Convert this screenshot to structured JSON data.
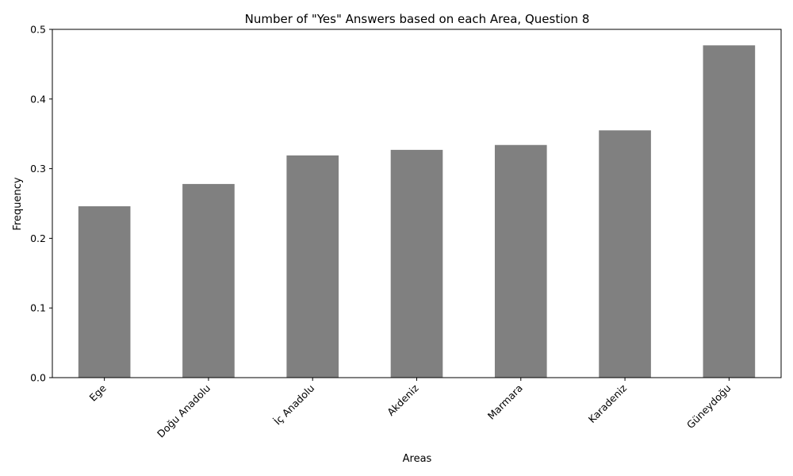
{
  "chart_data": {
    "type": "bar",
    "title": "Number of \"Yes\" Answers based on each Area, Question 8",
    "xlabel": "Areas",
    "ylabel": "Frequency",
    "categories": [
      "Ege",
      "Doğu Anadolu",
      "İç Anadolu",
      "Akdeniz",
      "Marmara",
      "Karadeniz",
      "Güneydoğu"
    ],
    "values": [
      0.246,
      0.278,
      0.319,
      0.327,
      0.334,
      0.355,
      0.477
    ],
    "ylim": [
      0,
      0.5
    ],
    "yticks": [
      "0.0",
      "0.1",
      "0.2",
      "0.3",
      "0.4",
      "0.5"
    ],
    "bar_color": "#808080",
    "grid": false,
    "legend": "none"
  }
}
